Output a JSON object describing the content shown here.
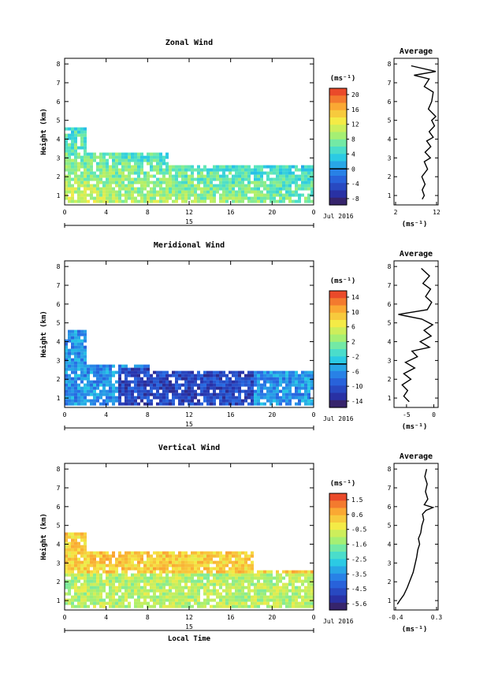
{
  "chart_data": [
    {
      "type": "heatmap",
      "title": "Zonal Wind",
      "ylabel": "Height (km)",
      "xlabel": "",
      "x_ticks": [
        "0",
        "4",
        "8",
        "12",
        "16",
        "20",
        "0"
      ],
      "y_ticks": [
        "1",
        "2",
        "3",
        "4",
        "5",
        "6",
        "7",
        "8"
      ],
      "date_day": "15",
      "date_label": "Jul 2016",
      "colorbar": {
        "unit": "(ms⁻¹)",
        "ticks": [
          "20",
          "16",
          "12",
          "8",
          "4",
          "0",
          "-4",
          "-8"
        ],
        "range": [
          -10,
          22
        ],
        "zero_line": 0
      },
      "average": {
        "title": "Average",
        "unit": "(ms⁻¹)",
        "x_ticks": [
          "2",
          "12"
        ],
        "xlim": [
          2,
          12
        ],
        "profile": [
          [
            8.5,
            0.8
          ],
          [
            9,
            1.0
          ],
          [
            8.5,
            1.3
          ],
          [
            9.2,
            1.6
          ],
          [
            8.4,
            2.0
          ],
          [
            9.8,
            2.4
          ],
          [
            9,
            2.8
          ],
          [
            10.5,
            3.0
          ],
          [
            9.2,
            3.3
          ],
          [
            10.6,
            3.6
          ],
          [
            9.6,
            3.9
          ],
          [
            11.2,
            4.1
          ],
          [
            10.2,
            4.4
          ],
          [
            11.5,
            4.7
          ],
          [
            10.8,
            5.0
          ],
          [
            11.8,
            5.2
          ],
          [
            10,
            5.6
          ],
          [
            10.8,
            6.0
          ],
          [
            11.2,
            6.5
          ],
          [
            9,
            6.8
          ],
          [
            10.2,
            7.2
          ],
          [
            6.5,
            7.4
          ],
          [
            11.8,
            7.6
          ],
          [
            5.8,
            7.9
          ]
        ]
      }
    },
    {
      "type": "heatmap",
      "title": "Meridional Wind",
      "ylabel": "Height (km)",
      "xlabel": "",
      "x_ticks": [
        "0",
        "4",
        "8",
        "12",
        "16",
        "20",
        "0"
      ],
      "y_ticks": [
        "1",
        "2",
        "3",
        "4",
        "5",
        "6",
        "7",
        "8"
      ],
      "date_day": "15",
      "date_label": "Jul 2016",
      "colorbar": {
        "unit": "(ms⁻¹)",
        "ticks": [
          "14",
          "10",
          "6",
          "2",
          "-2",
          "-6",
          "-10",
          "-14"
        ],
        "range": [
          -16,
          16
        ],
        "zero_line": 0
      },
      "average": {
        "title": "Average",
        "unit": "(ms⁻¹)",
        "x_ticks": [
          "-5",
          "0"
        ],
        "xlim": [
          -7,
          0.5
        ],
        "profile": [
          [
            -4.5,
            0.8
          ],
          [
            -5.5,
            1.1
          ],
          [
            -4.8,
            1.4
          ],
          [
            -5.8,
            1.7
          ],
          [
            -4.2,
            2.0
          ],
          [
            -5.5,
            2.3
          ],
          [
            -3.5,
            2.6
          ],
          [
            -5.2,
            2.9
          ],
          [
            -3.0,
            3.2
          ],
          [
            -4.0,
            3.5
          ],
          [
            -0.8,
            3.7
          ],
          [
            -2.5,
            4.0
          ],
          [
            -0.5,
            4.3
          ],
          [
            -1.8,
            4.6
          ],
          [
            -0.2,
            4.9
          ],
          [
            -2.2,
            5.2
          ],
          [
            -6.5,
            5.45
          ],
          [
            -1.2,
            5.7
          ],
          [
            -0.4,
            6.1
          ],
          [
            -1.5,
            6.4
          ],
          [
            -0.6,
            6.8
          ],
          [
            -2,
            7.1
          ],
          [
            -0.8,
            7.5
          ],
          [
            -2.3,
            7.9
          ]
        ]
      }
    },
    {
      "type": "heatmap",
      "title": "Vertical Wind",
      "ylabel": "Height (km)",
      "xlabel": "Local Time",
      "x_ticks": [
        "0",
        "4",
        "8",
        "12",
        "16",
        "20",
        "0"
      ],
      "y_ticks": [
        "1",
        "2",
        "3",
        "4",
        "5",
        "6",
        "7",
        "8"
      ],
      "date_day": "15",
      "date_label": "Jul 2016",
      "colorbar": {
        "unit": "(ms⁻¹)",
        "ticks": [
          "1.5",
          "0.6",
          "-0.5",
          "-1.6",
          "-2.5",
          "-3.5",
          "-4.5",
          "-5.6"
        ],
        "range": [
          -6,
          2
        ],
        "zero_line": null
      },
      "average": {
        "title": "Average",
        "unit": "(ms⁻¹)",
        "x_ticks": [
          "-0.4",
          "0.3"
        ],
        "xlim": [
          -0.4,
          0.3
        ],
        "profile": [
          [
            -0.37,
            0.8
          ],
          [
            -0.33,
            1.0
          ],
          [
            -0.26,
            1.3
          ],
          [
            -0.2,
            1.7
          ],
          [
            -0.15,
            2.1
          ],
          [
            -0.1,
            2.5
          ],
          [
            -0.07,
            2.9
          ],
          [
            -0.04,
            3.3
          ],
          [
            -0.02,
            3.7
          ],
          [
            0.01,
            4.0
          ],
          [
            -0.01,
            4.3
          ],
          [
            0.03,
            4.6
          ],
          [
            0.05,
            5.0
          ],
          [
            0.08,
            5.3
          ],
          [
            0.06,
            5.6
          ],
          [
            0.12,
            5.8
          ],
          [
            0.24,
            5.95
          ],
          [
            0.09,
            6.1
          ],
          [
            0.15,
            6.4
          ],
          [
            0.11,
            6.8
          ],
          [
            0.14,
            7.2
          ],
          [
            0.1,
            7.6
          ],
          [
            0.13,
            8.0
          ]
        ]
      }
    }
  ]
}
